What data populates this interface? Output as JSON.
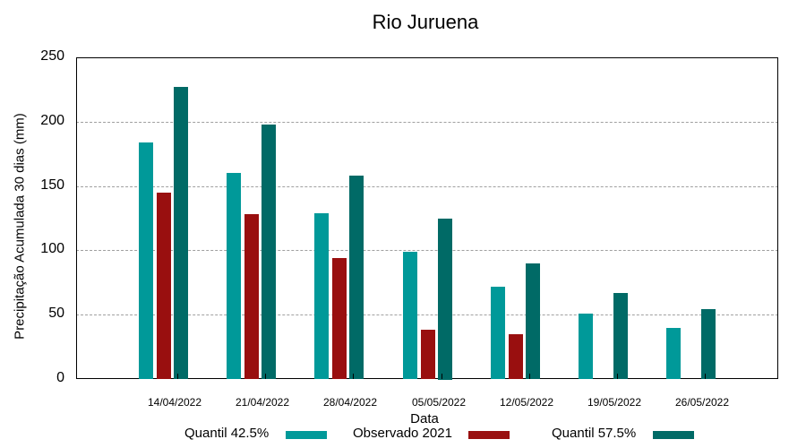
{
  "chart_data": {
    "type": "bar",
    "title": "Rio Juruena",
    "xlabel": "Data",
    "ylabel": "Precipitação Acumulada 30 dias (mm)",
    "ylim": [
      0,
      250
    ],
    "yticks": [
      0,
      50,
      100,
      150,
      200,
      250
    ],
    "grid": true,
    "legend_position": "bottom",
    "categories": [
      "14/04/2022",
      "21/04/2022",
      "28/04/2022",
      "05/05/2022",
      "12/05/2022",
      "19/05/2022",
      "26/05/2022"
    ],
    "series": [
      {
        "name": "Quantil 42.5%",
        "color": "#009999",
        "values": [
          184,
          160,
          129,
          99,
          72,
          51,
          40
        ]
      },
      {
        "name": "Observado 2021",
        "color": "#990f0f",
        "values": [
          145,
          128,
          94,
          38,
          35,
          null,
          null
        ]
      },
      {
        "name": "Quantil 57.5%",
        "color": "#006a66",
        "values": [
          227,
          198,
          158,
          125,
          90,
          67,
          54
        ]
      }
    ]
  },
  "labels": {
    "title": "Rio Juruena",
    "xlabel": "Data",
    "ylabel": "Precipitação Acumulada 30 dias (mm)",
    "yticks": [
      "0",
      "50",
      "100",
      "150",
      "200",
      "250"
    ],
    "xticks": [
      "14/04/2022",
      "21/04/2022",
      "28/04/2022",
      "05/05/2022",
      "12/05/2022",
      "19/05/2022",
      "26/05/2022"
    ],
    "legend": [
      "Quantil 42.5%",
      "Observado 2021",
      "Quantil 57.5%"
    ]
  }
}
